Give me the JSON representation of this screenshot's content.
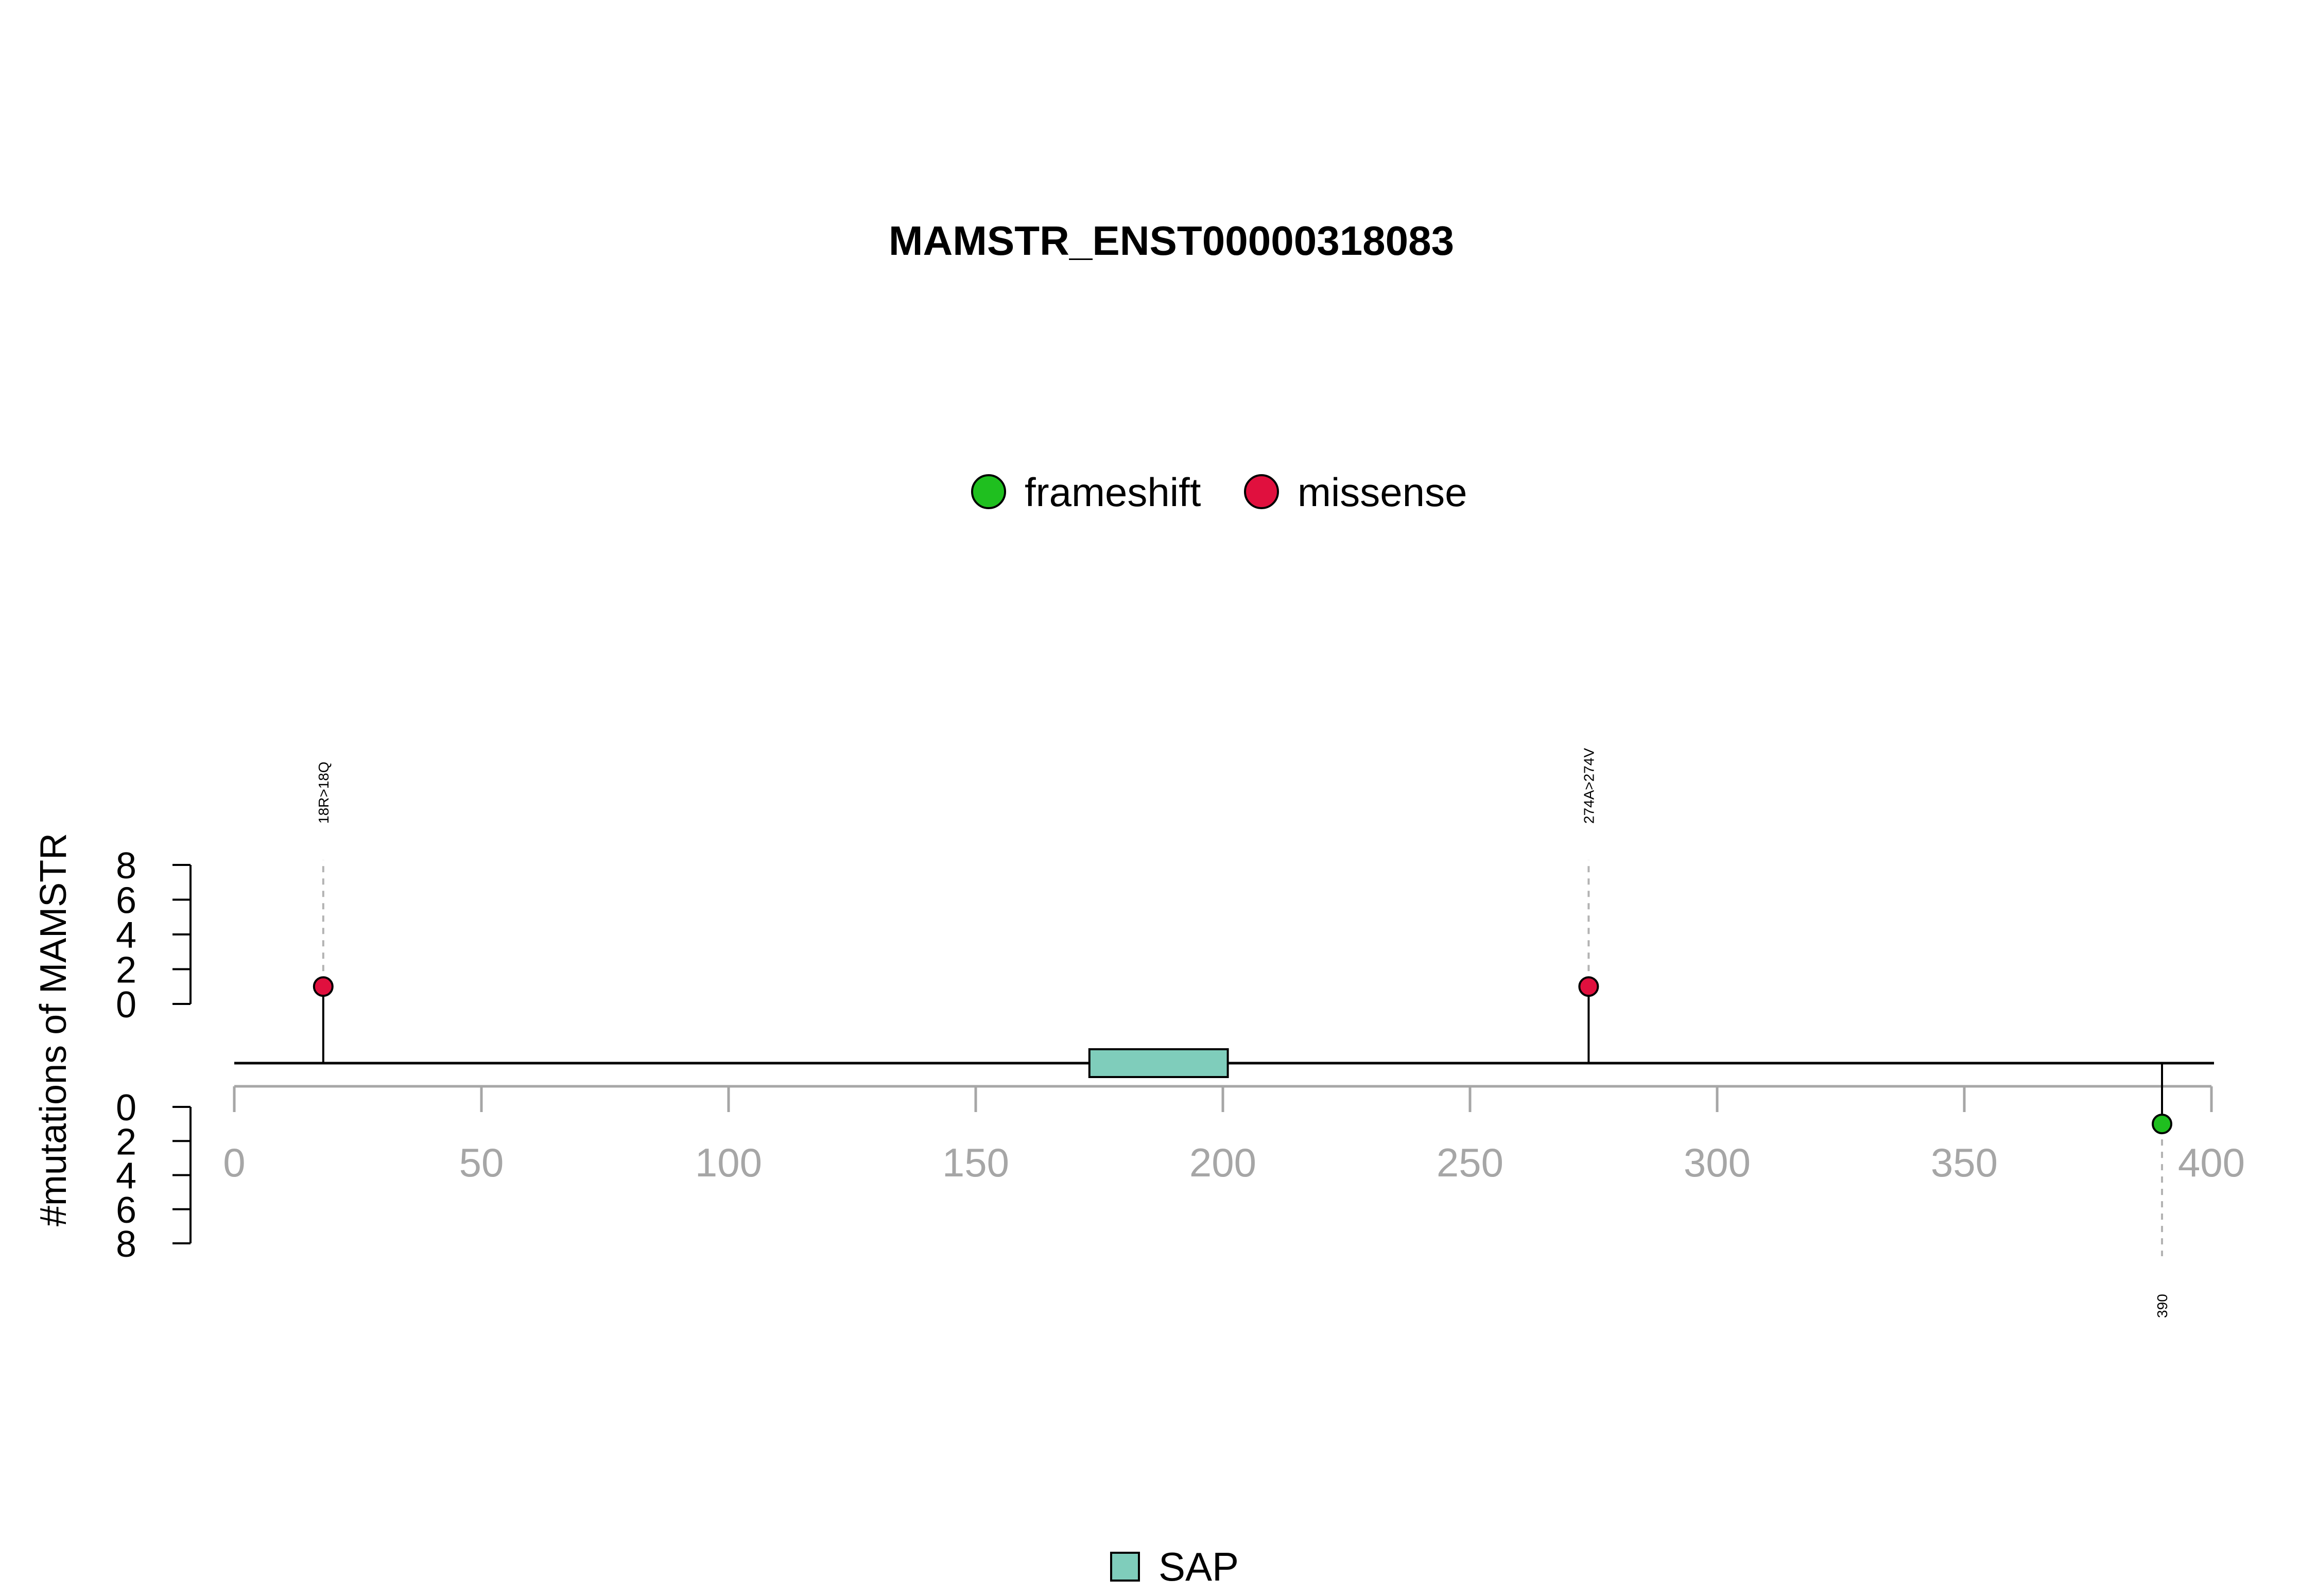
{
  "chart_data": {
    "type": "lollipop",
    "title": "MAMSTR_ENST00000318083",
    "ylabel": "#mutations of MAMSTR",
    "xlim": [
      0,
      400
    ],
    "x_ticks": [
      0,
      50,
      100,
      150,
      200,
      250,
      300,
      350,
      400
    ],
    "y_ticks_top": [
      0,
      2,
      4,
      6,
      8
    ],
    "y_ticks_bottom": [
      0,
      2,
      4,
      6,
      8
    ],
    "protein_length": 400,
    "legend_mutations": [
      {
        "label": "frameshift",
        "color": "#1fbf1f"
      },
      {
        "label": "missense",
        "color": "#e0103e"
      }
    ],
    "domains": [
      {
        "name": "SAP",
        "start": 173,
        "end": 201,
        "color": "#7fcdbb"
      }
    ],
    "mutations": [
      {
        "position": 18,
        "label": "18R>18Q",
        "type": "missense",
        "count": 1,
        "side": "top"
      },
      {
        "position": 274,
        "label": "274A>274V",
        "type": "missense",
        "count": 1,
        "side": "top"
      },
      {
        "position": 390,
        "label": "390",
        "type": "frameshift",
        "count": 1,
        "side": "bottom"
      }
    ]
  }
}
